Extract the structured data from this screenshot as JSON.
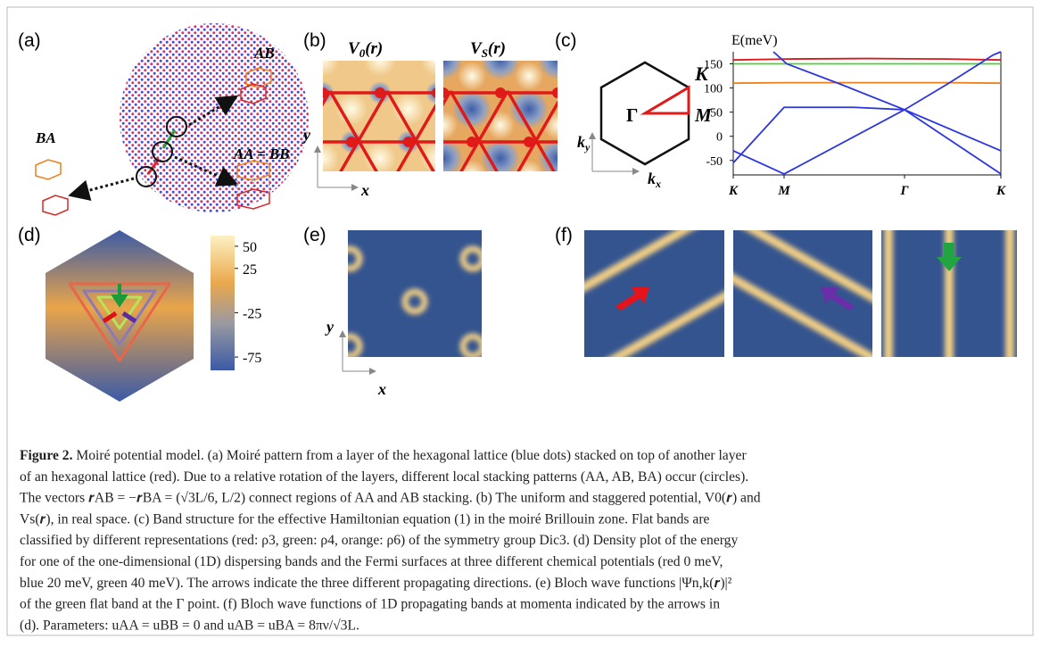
{
  "figure": {
    "panels": {
      "a": {
        "label": "(a)",
        "stackings": [
          "AB",
          "BA",
          "AA = BB"
        ]
      },
      "b": {
        "label": "(b)",
        "titles": [
          {
            "base": "V",
            "sub": "0",
            "arg": "(r)"
          },
          {
            "base": "V",
            "sub": "S",
            "arg": "(r)"
          }
        ],
        "x_axis": "x",
        "y_axis": "y"
      },
      "c": {
        "label": "(c)",
        "points": [
          "K",
          "Γ",
          "M"
        ],
        "ky": {
          "base": "k",
          "sub": "y"
        },
        "kx": {
          "base": "k",
          "sub": "x"
        },
        "band_chart": {
          "type": "line",
          "ylabel": "E(meV)",
          "xlim": [
            0,
            1
          ],
          "ylim": [
            -80,
            175
          ],
          "yticks": [
            150,
            100,
            50,
            0,
            -50
          ],
          "xticks": [
            {
              "value": 0,
              "label": "K"
            },
            {
              "value": 0.19,
              "label": "M"
            },
            {
              "value": 0.64,
              "label": "Γ"
            },
            {
              "value": 1,
              "label": "K"
            }
          ],
          "series": [
            {
              "color": "#d7191c",
              "x": [
                0,
                0.2,
                0.5,
                0.8,
                1
              ],
              "values": [
                158,
                160,
                161,
                160,
                158
              ]
            },
            {
              "color": "#4cd137",
              "x": [
                0,
                1
              ],
              "values": [
                150,
                150
              ]
            },
            {
              "color": "#f07f1d",
              "x": [
                0,
                0.2,
                0.5,
                0.8,
                1
              ],
              "values": [
                110,
                111,
                111,
                111,
                110
              ]
            },
            {
              "color": "#2b35e0",
              "x": [
                0,
                0.19
              ],
              "values": [
                -30,
                -78
              ]
            },
            {
              "color": "#2b35e0",
              "x": [
                0,
                0.19,
                0.45,
                0.64,
                1
              ],
              "values": [
                -55,
                60,
                60,
                55,
                -78
              ]
            },
            {
              "color": "#2b35e0",
              "x": [
                0.19,
                0.64,
                0.8,
                0.92,
                0.97,
                1
              ],
              "values": [
                -78,
                55,
                108,
                150,
                168,
                175
              ]
            },
            {
              "color": "#2b35e0",
              "x": [
                0.15,
                0.2,
                0.4,
                0.64,
                1
              ],
              "values": [
                175,
                150,
                108,
                55,
                -30
              ]
            }
          ]
        }
      },
      "d": {
        "label": "(d)",
        "colorbar": {
          "ylim": [
            -90,
            62
          ],
          "ticks": [
            50,
            25,
            -25,
            -75
          ]
        }
      },
      "e": {
        "label": "(e)",
        "x_axis": "x",
        "y_axis": "y"
      },
      "f": {
        "label": "(f)"
      }
    },
    "caption": {
      "label": "Figure 2.",
      "lines": [
        " Moiré potential model. (a) Moiré pattern from a layer of the hexagonal lattice (blue dots) stacked on top of another layer",
        "of an hexagonal lattice (red). Due to a relative rotation of the layers, different local stacking patterns (AA, AB, BA) occur (circles).",
        "The vectors 𝒓AB = −𝒓BA = (√3L/6, L/2) connect regions of AA and AB stacking. (b) The uniform and staggered potential, V0(𝒓) and",
        "Vs(𝒓), in real space. (c) Band structure for the effective Hamiltonian equation (1) in the moiré Brillouin zone. Flat bands are",
        "classified by different representations (red: ρ3, green: ρ4, orange: ρ6) of the symmetry group Dic3. (d) Density plot of the energy",
        "for one of the one-dimensional (1D) dispersing bands and the Fermi surfaces at three different chemical potentials (red 0 meV,",
        "blue 20 meV, green 40 meV). The arrows indicate the three different propagating directions. (e) Bloch wave functions |Ψn,k(𝒓)|²",
        "of the green flat band at the Γ point. (f) Bloch wave functions of 1D propagating bands at momenta indicated by the arrows in",
        "(d). Parameters: uAA = uBB = 0 and uAB = uBA = 8πν/√3L."
      ]
    }
  }
}
